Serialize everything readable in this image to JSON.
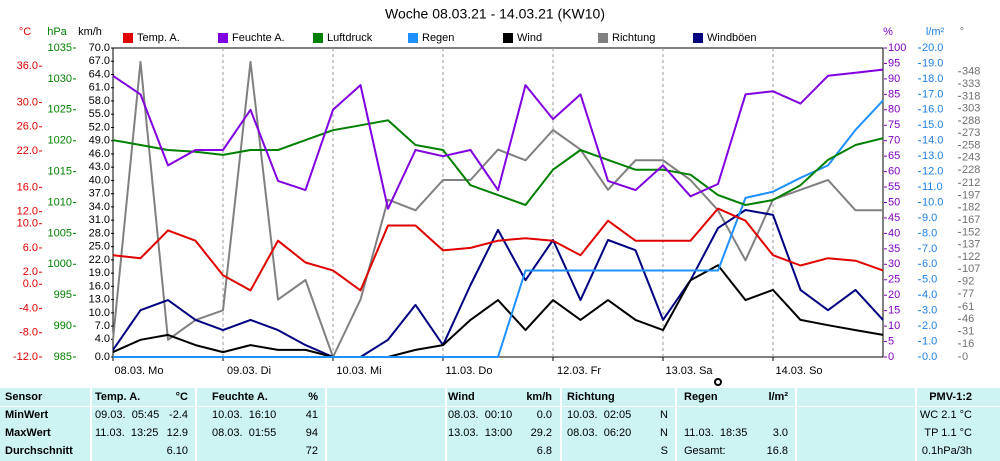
{
  "chart_data": {
    "type": "line",
    "title": "Woche 08.03.21 - 14.03.21 (KW10)",
    "x": [
      0,
      6,
      12,
      18,
      24,
      30,
      36,
      42,
      48,
      54,
      60,
      66,
      72,
      78,
      84,
      90,
      96,
      102,
      108,
      114,
      120,
      126,
      132,
      138,
      144,
      150,
      156,
      162,
      168
    ],
    "xlim": [
      0,
      168
    ],
    "xticks": [
      {
        "value": 0,
        "label": "08.03. Mo"
      },
      {
        "value": 24,
        "label": "09.03. Di"
      },
      {
        "value": 48,
        "label": "10.03. Mi"
      },
      {
        "value": 72,
        "label": "11.03. Do"
      },
      {
        "value": 96,
        "label": "12.03. Fr"
      },
      {
        "value": 120,
        "label": "13.03. Sa"
      },
      {
        "value": 144,
        "label": "14.03. So"
      }
    ],
    "grid": true,
    "y_axes": [
      {
        "unit": "°C",
        "color": "#e00000",
        "lim": [
          -12,
          39
        ],
        "ticks": [
          {
            "value": 36,
            "label": "36.0"
          },
          {
            "value": 30,
            "label": "30.0"
          },
          {
            "value": 26,
            "label": "26.0"
          },
          {
            "value": 22,
            "label": "22.0"
          },
          {
            "value": 16,
            "label": "16.0"
          },
          {
            "value": 12,
            "label": "12.0"
          },
          {
            "value": 10,
            "label": "10.0"
          },
          {
            "value": 6,
            "label": "6.0"
          },
          {
            "value": 2,
            "label": "2.0"
          },
          {
            "value": 0,
            "label": "0.0"
          },
          {
            "value": -4,
            "label": "-4.0"
          },
          {
            "value": -8,
            "label": "-8.0"
          },
          {
            "value": -12,
            "label": "-12.0"
          }
        ]
      },
      {
        "unit": "hPa",
        "color": "#008000",
        "lim": [
          985,
          1035
        ],
        "ticks": [
          985,
          990,
          995,
          1000,
          1005,
          1010,
          1015,
          1020,
          1025,
          1030,
          1035
        ]
      },
      {
        "unit": "km/h",
        "color": "#000000",
        "lim": [
          0,
          70
        ],
        "ticks": [
          {
            "value": 0,
            "label": "0.0"
          },
          {
            "value": 4,
            "label": "4.0"
          },
          {
            "value": 7,
            "label": "7.0"
          },
          {
            "value": 10,
            "label": "10.0"
          },
          {
            "value": 13,
            "label": "13.0"
          },
          {
            "value": 16,
            "label": "16.0"
          },
          {
            "value": 19,
            "label": "19.0"
          },
          {
            "value": 22,
            "label": "22.0"
          },
          {
            "value": 25,
            "label": "25.0"
          },
          {
            "value": 28,
            "label": "28.0"
          },
          {
            "value": 31,
            "label": "31.0"
          },
          {
            "value": 34,
            "label": "34.0"
          },
          {
            "value": 37,
            "label": "37.0"
          },
          {
            "value": 40,
            "label": "40.0"
          },
          {
            "value": 43,
            "label": "43.0"
          },
          {
            "value": 46,
            "label": "46.0"
          },
          {
            "value": 49,
            "label": "49.0"
          },
          {
            "value": 52,
            "label": "52.0"
          },
          {
            "value": 55,
            "label": "55.0"
          },
          {
            "value": 58,
            "label": "58.0"
          },
          {
            "value": 61,
            "label": "61.0"
          },
          {
            "value": 64,
            "label": "64.0"
          },
          {
            "value": 67,
            "label": "67.0"
          },
          {
            "value": 70,
            "label": "70.0"
          }
        ]
      },
      {
        "unit": "%",
        "color": "#8000c0",
        "lim": [
          0,
          100
        ],
        "ticks": [
          0,
          5,
          10,
          15,
          20,
          25,
          30,
          35,
          40,
          45,
          50,
          55,
          60,
          65,
          70,
          75,
          80,
          85,
          90,
          95,
          100
        ]
      },
      {
        "unit": "l/m²",
        "color": "#2080e0",
        "lim": [
          0,
          20
        ],
        "ticks": [
          {
            "value": 0,
            "label": "0.0"
          },
          {
            "value": 1,
            "label": "1.0"
          },
          {
            "value": 2,
            "label": "2.0"
          },
          {
            "value": 3,
            "label": "3.0"
          },
          {
            "value": 4,
            "label": "4.0"
          },
          {
            "value": 5,
            "label": "5.0"
          },
          {
            "value": 6,
            "label": "6.0"
          },
          {
            "value": 7,
            "label": "7.0"
          },
          {
            "value": 8,
            "label": "8.0"
          },
          {
            "value": 9,
            "label": "9.0"
          },
          {
            "value": 10,
            "label": "10.0"
          },
          {
            "value": 11,
            "label": "11.0"
          },
          {
            "value": 12,
            "label": "12.0"
          },
          {
            "value": 13,
            "label": "13.0"
          },
          {
            "value": 14,
            "label": "14.0"
          },
          {
            "value": 15,
            "label": "15.0"
          },
          {
            "value": 16,
            "label": "16.0"
          },
          {
            "value": 17,
            "label": "17.0"
          },
          {
            "value": 18,
            "label": "18.0"
          },
          {
            "value": 19,
            "label": "19.0"
          },
          {
            "value": 20,
            "label": "20.0"
          }
        ]
      },
      {
        "unit": "°",
        "color": "#707070",
        "lim": [
          0,
          377
        ],
        "ticks": [
          0,
          16,
          31,
          46,
          61,
          77,
          92,
          107,
          122,
          137,
          152,
          167,
          182,
          197,
          212,
          228,
          243,
          258,
          273,
          288,
          303,
          318,
          333,
          348
        ]
      }
    ],
    "series": [
      {
        "name": "Temp. A.",
        "color": "#e00000",
        "axis": 0,
        "values": [
          4.8,
          4.3,
          8.9,
          7.2,
          1.5,
          -1.0,
          7.2,
          3.6,
          2.3,
          -1.0,
          9.7,
          9.7,
          5.6,
          6.0,
          7.2,
          7.6,
          7.2,
          4.8,
          10.5,
          7.2,
          7.2,
          7.2,
          12.5,
          10.5,
          4.8,
          3.1,
          4.3,
          3.9,
          2.3
        ]
      },
      {
        "name": "Feuchte A.",
        "color": "#8000e0",
        "axis": 3,
        "values": [
          91,
          85,
          62,
          67,
          67,
          80,
          57,
          54,
          80,
          88,
          48,
          67,
          65,
          67,
          54,
          88,
          77,
          85,
          57,
          54,
          62,
          52,
          56,
          85,
          86,
          82,
          91,
          92,
          93
        ]
      },
      {
        "name": "Luftdruck",
        "color": "#008000",
        "axis": 1,
        "values": [
          1020.1,
          1019.3,
          1018.5,
          1018.2,
          1017.7,
          1018.5,
          1018.5,
          1020.1,
          1021.7,
          1022.5,
          1023.3,
          1019.3,
          1018.5,
          1012.8,
          1011.2,
          1009.6,
          1015.3,
          1018.5,
          1016.9,
          1015.3,
          1015.3,
          1014.5,
          1011.2,
          1009.6,
          1010.4,
          1012.8,
          1016.9,
          1019.3,
          1020.4
        ]
      },
      {
        "name": "Regen",
        "color": "#1e90ff",
        "axis": 4,
        "values": [
          0,
          0,
          0,
          0,
          0,
          0,
          0,
          0,
          0,
          0,
          0,
          0,
          0,
          0,
          0,
          5.6,
          5.6,
          5.6,
          5.6,
          5.6,
          5.6,
          5.6,
          5.6,
          10.3,
          10.7,
          11.6,
          12.4,
          14.7,
          16.6
        ]
      },
      {
        "name": "Wind",
        "color": "#000000",
        "axis": 2,
        "values": [
          1.1,
          3.9,
          5.0,
          2.7,
          1.1,
          2.7,
          1.6,
          1.6,
          0,
          0,
          0,
          1.6,
          2.7,
          8.4,
          12.9,
          6.1,
          12.9,
          8.4,
          12.9,
          8.4,
          6.1,
          17.4,
          20.8,
          12.9,
          15.2,
          8.4,
          7.2,
          6.1,
          5.0
        ]
      },
      {
        "name": "Richtung",
        "color": "#808080",
        "axis": 5,
        "values": [
          21,
          360,
          21,
          45,
          57,
          360,
          70,
          94,
          0,
          70,
          192,
          179,
          216,
          216,
          253,
          240,
          277,
          253,
          204,
          240,
          240,
          216,
          179,
          118,
          192,
          204,
          216,
          179,
          179
        ]
      },
      {
        "name": "Windböen",
        "color": "#000080",
        "axis": 2,
        "values": [
          1.6,
          10.6,
          12.9,
          8.4,
          6.1,
          8.4,
          6.1,
          2.7,
          0,
          0,
          3.9,
          11.8,
          2.7,
          16.3,
          28.8,
          17.4,
          26.5,
          12.9,
          26.5,
          24.2,
          8.4,
          17.4,
          29.2,
          33.3,
          32.2,
          15.2,
          10.6,
          15.2,
          8.4
        ]
      }
    ]
  },
  "table": {
    "rows": [
      {
        "label": "Sensor",
        "temp": "Temp. A.",
        "temp_val": "°C",
        "hum": "Feuchte A.",
        "hum_val": "%",
        "wind": "Wind",
        "wind_val": "km/h",
        "dir": "Richtung",
        "rain": "Regen",
        "rain_val": "l/m²",
        "pmv": "PMV-1:2"
      },
      {
        "label": "MinWert",
        "temp": "09.03.  05:45",
        "temp_val": "-2.4",
        "hum": "10.03.  16:10",
        "hum_val": "41",
        "wind": "08.03.  00:10",
        "wind_val": "0.0",
        "dir": "10.03.  02:05",
        "dir_val": "N",
        "pmv": "WC 2.1 °C"
      },
      {
        "label": "MaxWert",
        "temp": "11.03.  13:25",
        "temp_val": "12.9",
        "hum": "08.03.  01:55",
        "hum_val": "94",
        "wind": "13.03.  13:00",
        "wind_val": "29.2",
        "dir": "08.03.  06:20",
        "dir_val": "N",
        "rain": "11.03.  18:35",
        "rain_val": "3.0",
        "pmv": "TP 1.1 °C"
      },
      {
        "label": "Durchschnitt",
        "temp_val": "6.10",
        "hum_val": "72",
        "wind_val": "6.8",
        "dir_val": "S",
        "rain": "Gesamt:",
        "rain_val": "16.8",
        "pmv": "0.1hPa/3h"
      }
    ]
  }
}
